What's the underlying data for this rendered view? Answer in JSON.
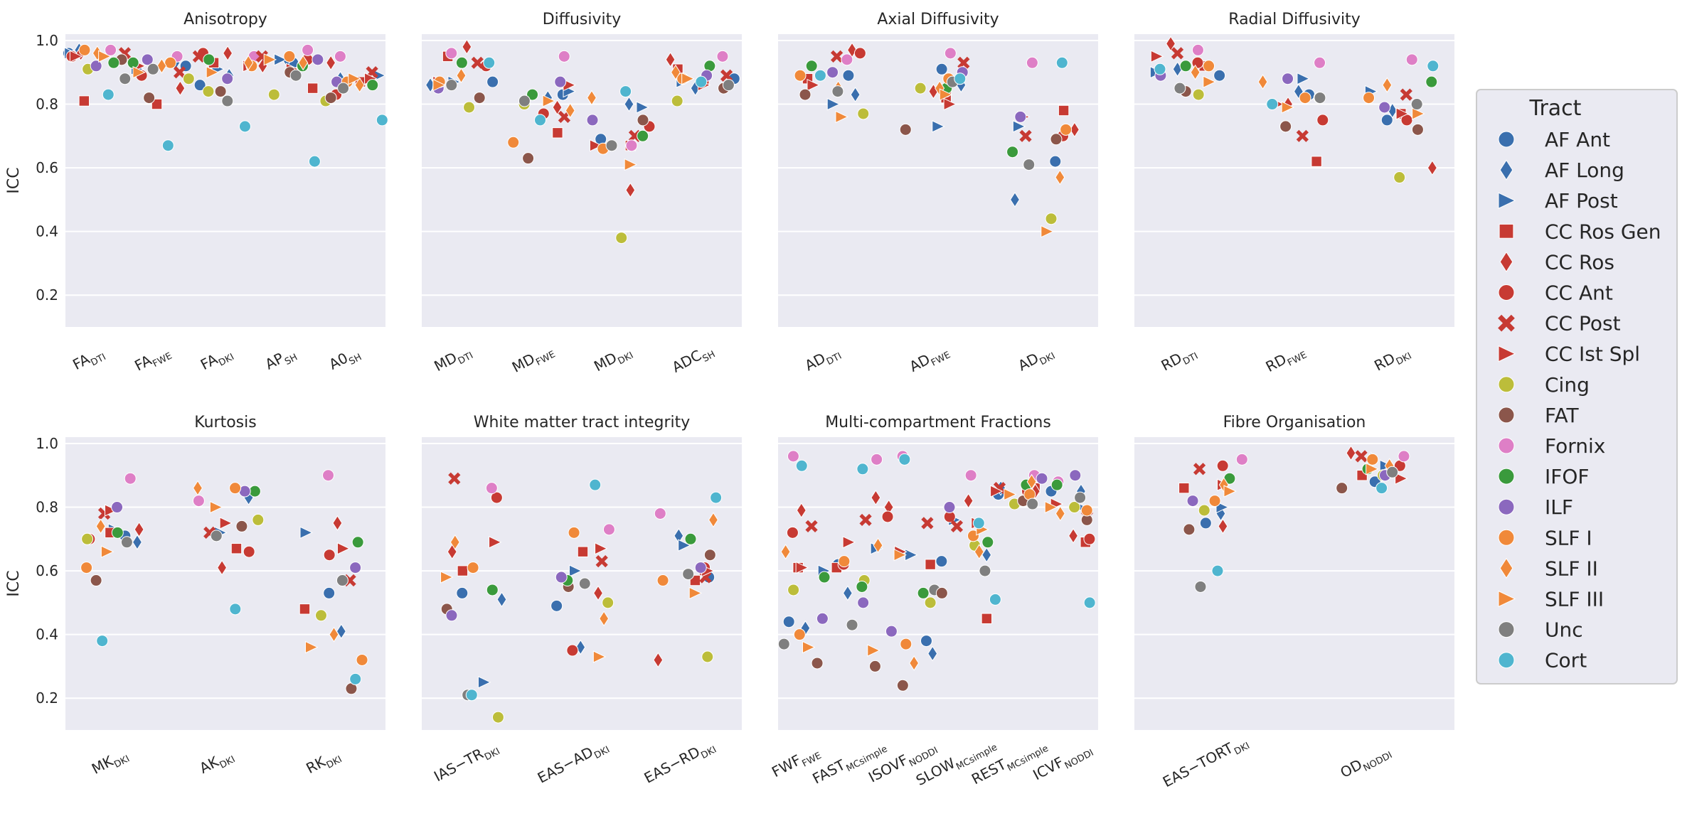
{
  "chart_data": {
    "type": "scatter",
    "ylabel": "ICC",
    "ylim": [
      0.1,
      1.02
    ],
    "yticks": [
      "0.2",
      "0.4",
      "0.6",
      "0.8",
      "1.0"
    ],
    "grid": true,
    "legend": {
      "title": "Tract",
      "placement": "right",
      "entries": [
        {
          "name": "AF Ant",
          "marker": "circle",
          "color": "#3a6fae"
        },
        {
          "name": "AF Long",
          "marker": "diamond",
          "color": "#3a6fae"
        },
        {
          "name": "AF Post",
          "marker": "triangle-right",
          "color": "#3a6fae"
        },
        {
          "name": "CC Ros Gen",
          "marker": "square",
          "color": "#c73a33"
        },
        {
          "name": "CC Ros",
          "marker": "diamond",
          "color": "#c73a33"
        },
        {
          "name": "CC Ant",
          "marker": "circle",
          "color": "#c73a33"
        },
        {
          "name": "CC Post",
          "marker": "x",
          "color": "#c73a33"
        },
        {
          "name": "CC Ist Spl",
          "marker": "triangle-right",
          "color": "#c73a33"
        },
        {
          "name": "Cing",
          "marker": "circle",
          "color": "#bcbd3a"
        },
        {
          "name": "FAT",
          "marker": "circle",
          "color": "#8b564b"
        },
        {
          "name": "Fornix",
          "marker": "circle",
          "color": "#de7fc6"
        },
        {
          "name": "IFOF",
          "marker": "circle",
          "color": "#3a9a3c"
        },
        {
          "name": "ILF",
          "marker": "circle",
          "color": "#8b68be"
        },
        {
          "name": "SLF I",
          "marker": "circle",
          "color": "#f0893a"
        },
        {
          "name": "SLF II",
          "marker": "diamond",
          "color": "#f0893a"
        },
        {
          "name": "SLF III",
          "marker": "triangle-right",
          "color": "#f0893a"
        },
        {
          "name": "Unc",
          "marker": "circle",
          "color": "#7f7f7f"
        },
        {
          "name": "Cort",
          "marker": "circle",
          "color": "#4fb5cf"
        }
      ]
    },
    "panels": [
      {
        "title": "Anisotropy",
        "categories": [
          {
            "base": "FA",
            "sub": "DTI",
            "values": [
              0.96,
              0.97,
              0.96,
              0.81,
              0.96,
              0.95,
              0.96,
              0.95,
              0.91,
              0.94,
              0.97,
              0.93,
              0.92,
              0.97,
              0.96,
              0.95,
              0.88,
              0.83
            ]
          },
          {
            "base": "FA",
            "sub": "FWE",
            "values": [
              0.92,
              0.93,
              0.91,
              0.8,
              0.85,
              0.89,
              0.9,
              0.92,
              0.88,
              0.82,
              0.95,
              0.93,
              0.94,
              0.93,
              0.92,
              0.9,
              0.91,
              0.67
            ]
          },
          {
            "base": "FA",
            "sub": "DKI",
            "values": [
              0.86,
              0.89,
              0.91,
              0.93,
              0.96,
              0.96,
              0.95,
              0.92,
              0.84,
              0.84,
              0.95,
              0.94,
              0.88,
              0.92,
              0.93,
              0.9,
              0.81,
              0.73
            ]
          },
          {
            "base": "AP",
            "sub": "SH",
            "values": [
              0.93,
              0.94,
              0.94,
              0.85,
              0.92,
              0.94,
              0.95,
              0.91,
              0.83,
              0.9,
              0.97,
              0.92,
              0.94,
              0.95,
              0.93,
              0.94,
              0.89,
              0.62
            ]
          },
          {
            "base": "A0",
            "sub": "SH",
            "values": [
              0.87,
              0.88,
              0.89,
              0.87,
              0.93,
              0.83,
              0.9,
              0.88,
              0.81,
              0.82,
              0.95,
              0.86,
              0.87,
              0.87,
              0.86,
              0.88,
              0.85,
              0.75
            ]
          }
        ]
      },
      {
        "title": "Diffusivity",
        "categories": [
          {
            "base": "MD",
            "sub": "DTI",
            "values": [
              0.87,
              0.86,
              0.87,
              0.95,
              0.98,
              0.92,
              0.93,
              0.87,
              0.79,
              0.82,
              0.96,
              0.93,
              0.85,
              0.87,
              0.89,
              0.86,
              0.86,
              0.93
            ]
          },
          {
            "base": "MD",
            "sub": "FWE",
            "values": [
              0.83,
              0.82,
              0.84,
              0.71,
              0.79,
              0.77,
              0.76,
              0.86,
              0.8,
              0.63,
              0.95,
              0.83,
              0.87,
              0.68,
              0.78,
              0.81,
              0.81,
              0.75
            ]
          },
          {
            "base": "MD",
            "sub": "DKI",
            "values": [
              0.69,
              0.8,
              0.79,
              0.67,
              0.53,
              0.73,
              0.7,
              0.67,
              0.38,
              0.75,
              0.67,
              0.7,
              0.75,
              0.66,
              0.82,
              0.61,
              0.67,
              0.84
            ]
          },
          {
            "base": "ADC",
            "sub": "SH",
            "values": [
              0.88,
              0.85,
              0.87,
              0.91,
              0.94,
              0.87,
              0.89,
              0.86,
              0.81,
              0.85,
              0.95,
              0.92,
              0.89,
              0.88,
              0.9,
              0.88,
              0.86,
              0.87
            ]
          }
        ]
      },
      {
        "title": "Axial Diffusivity",
        "categories": [
          {
            "base": "AD",
            "sub": "DTI",
            "values": [
              0.89,
              0.83,
              0.8,
              0.88,
              0.97,
              0.96,
              0.95,
              0.86,
              0.77,
              0.83,
              0.94,
              0.92,
              0.9,
              0.89,
              0.85,
              0.76,
              0.84,
              0.89
            ]
          },
          {
            "base": "AD",
            "sub": "FWE",
            "values": [
              0.91,
              0.86,
              0.73,
              0.82,
              0.84,
              0.84,
              0.93,
              0.8,
              0.85,
              0.72,
              0.96,
              0.85,
              0.9,
              0.88,
              0.85,
              0.83,
              0.87,
              0.88
            ]
          },
          {
            "base": "AD",
            "sub": "DKI",
            "values": [
              0.62,
              0.5,
              0.73,
              0.78,
              0.72,
              0.7,
              0.7,
              0.76,
              0.44,
              0.69,
              0.93,
              0.65,
              0.76,
              0.72,
              0.57,
              0.4,
              0.61,
              0.93
            ]
          }
        ]
      },
      {
        "title": "Radial Diffusivity",
        "categories": [
          {
            "base": "RD",
            "sub": "DTI",
            "values": [
              0.89,
              0.91,
              0.9,
              0.92,
              0.99,
              0.93,
              0.96,
              0.95,
              0.83,
              0.84,
              0.97,
              0.92,
              0.89,
              0.92,
              0.9,
              0.87,
              0.85,
              0.91
            ]
          },
          {
            "base": "RD",
            "sub": "FWE",
            "values": [
              0.83,
              0.84,
              0.88,
              0.62,
              0.8,
              0.75,
              0.7,
              0.8,
              0.73,
              0.73,
              0.93,
              0.82,
              0.88,
              0.82,
              0.87,
              0.79,
              0.82,
              0.8
            ]
          },
          {
            "base": "RD",
            "sub": "DKI",
            "values": [
              0.75,
              0.78,
              0.84,
              0.77,
              0.6,
              0.75,
              0.83,
              0.77,
              0.57,
              0.72,
              0.94,
              0.87,
              0.79,
              0.82,
              0.86,
              0.77,
              0.8,
              0.92
            ]
          }
        ]
      },
      {
        "title": "Kurtosis",
        "categories": [
          {
            "base": "MK",
            "sub": "DKI",
            "values": [
              0.71,
              0.69,
              0.73,
              0.72,
              0.73,
              0.7,
              0.78,
              0.79,
              0.7,
              0.57,
              0.89,
              0.72,
              0.8,
              0.61,
              0.74,
              0.66,
              0.69,
              0.38
            ]
          },
          {
            "base": "AK",
            "sub": "DKI",
            "values": [
              0.85,
              0.83,
              0.72,
              0.67,
              0.61,
              0.66,
              0.72,
              0.75,
              0.76,
              0.74,
              0.82,
              0.85,
              0.85,
              0.86,
              0.86,
              0.8,
              0.71,
              0.48
            ]
          },
          {
            "base": "RK",
            "sub": "DKI",
            "values": [
              0.53,
              0.41,
              0.72,
              0.48,
              0.75,
              0.65,
              0.57,
              0.67,
              0.46,
              0.23,
              0.9,
              0.69,
              0.61,
              0.32,
              0.4,
              0.36,
              0.57,
              0.26
            ]
          }
        ]
      },
      {
        "title": "White matter tract integrity",
        "categories": [
          {
            "base": "IAS−TR",
            "sub": "DKI",
            "values": [
              0.53,
              0.51,
              0.25,
              0.6,
              0.66,
              0.83,
              0.89,
              0.69,
              0.14,
              0.48,
              0.86,
              0.54,
              0.46,
              0.61,
              0.69,
              0.58,
              0.21,
              0.21
            ]
          },
          {
            "base": "EAS−AD",
            "sub": "DKI",
            "values": [
              0.49,
              0.36,
              0.6,
              0.66,
              0.53,
              0.35,
              0.63,
              0.67,
              0.5,
              0.55,
              0.73,
              0.57,
              0.58,
              0.72,
              0.45,
              0.33,
              0.56,
              0.87
            ]
          },
          {
            "base": "EAS−RD",
            "sub": "DKI",
            "values": [
              0.58,
              0.71,
              0.68,
              0.57,
              0.32,
              0.61,
              0.58,
              0.6,
              0.33,
              0.65,
              0.78,
              0.7,
              0.61,
              0.57,
              0.76,
              0.53,
              0.59,
              0.83
            ]
          }
        ]
      },
      {
        "title": "Multi-compartment Fractions",
        "categories": [
          {
            "base": "FWF",
            "sub": "FWE",
            "values": [
              0.44,
              0.42,
              0.6,
              0.61,
              0.79,
              0.72,
              0.74,
              0.61,
              0.54,
              0.31,
              0.96,
              0.58,
              0.45,
              0.4,
              0.66,
              0.36,
              0.37,
              0.93
            ]
          },
          {
            "base": "FAST",
            "sub": "MCsimple",
            "values": [
              0.62,
              0.53,
              0.67,
              0.61,
              0.83,
              0.62,
              0.76,
              0.69,
              0.57,
              0.3,
              0.95,
              0.55,
              0.5,
              0.63,
              0.68,
              0.35,
              0.43,
              0.92
            ]
          },
          {
            "base": "ISOVF",
            "sub": "NODDI",
            "values": [
              0.38,
              0.34,
              0.65,
              0.62,
              0.8,
              0.77,
              0.75,
              0.66,
              0.5,
              0.24,
              0.96,
              0.53,
              0.41,
              0.37,
              0.31,
              0.65,
              0.54,
              0.95
            ]
          },
          {
            "base": "SLOW",
            "sub": "MCsimple",
            "values": [
              0.63,
              0.65,
              0.76,
              0.45,
              0.82,
              0.77,
              0.74,
              0.75,
              0.68,
              0.53,
              0.9,
              0.69,
              0.8,
              0.71,
              0.66,
              0.73,
              0.6,
              0.75
            ]
          },
          {
            "base": "REST",
            "sub": "MCsimple",
            "values": [
              0.84,
              0.86,
              0.84,
              0.86,
              0.85,
              0.85,
              0.86,
              0.85,
              0.81,
              0.82,
              0.9,
              0.87,
              0.89,
              0.84,
              0.88,
              0.84,
              0.81,
              0.51
            ]
          },
          {
            "base": "ICVF",
            "sub": "NODDI",
            "values": [
              0.85,
              0.85,
              0.8,
              0.69,
              0.71,
              0.7,
              0.77,
              0.81,
              0.8,
              0.76,
              0.88,
              0.87,
              0.9,
              0.79,
              0.78,
              0.8,
              0.83,
              0.5
            ]
          }
        ]
      },
      {
        "title": "Fibre Organisation",
        "categories": [
          {
            "base": "EAS−TORT",
            "sub": "DKI",
            "values": [
              0.75,
              0.78,
              0.8,
              0.86,
              0.74,
              0.93,
              0.92,
              0.87,
              0.79,
              0.73,
              0.95,
              0.89,
              0.82,
              0.82,
              0.87,
              0.85,
              0.55,
              0.6
            ]
          },
          {
            "base": "OD",
            "sub": "NODDI",
            "values": [
              0.88,
              0.95,
              0.93,
              0.9,
              0.97,
              0.93,
              0.96,
              0.89,
              0.9,
              0.86,
              0.96,
              0.92,
              0.9,
              0.95,
              0.93,
              0.92,
              0.91,
              0.86
            ]
          }
        ]
      }
    ]
  }
}
